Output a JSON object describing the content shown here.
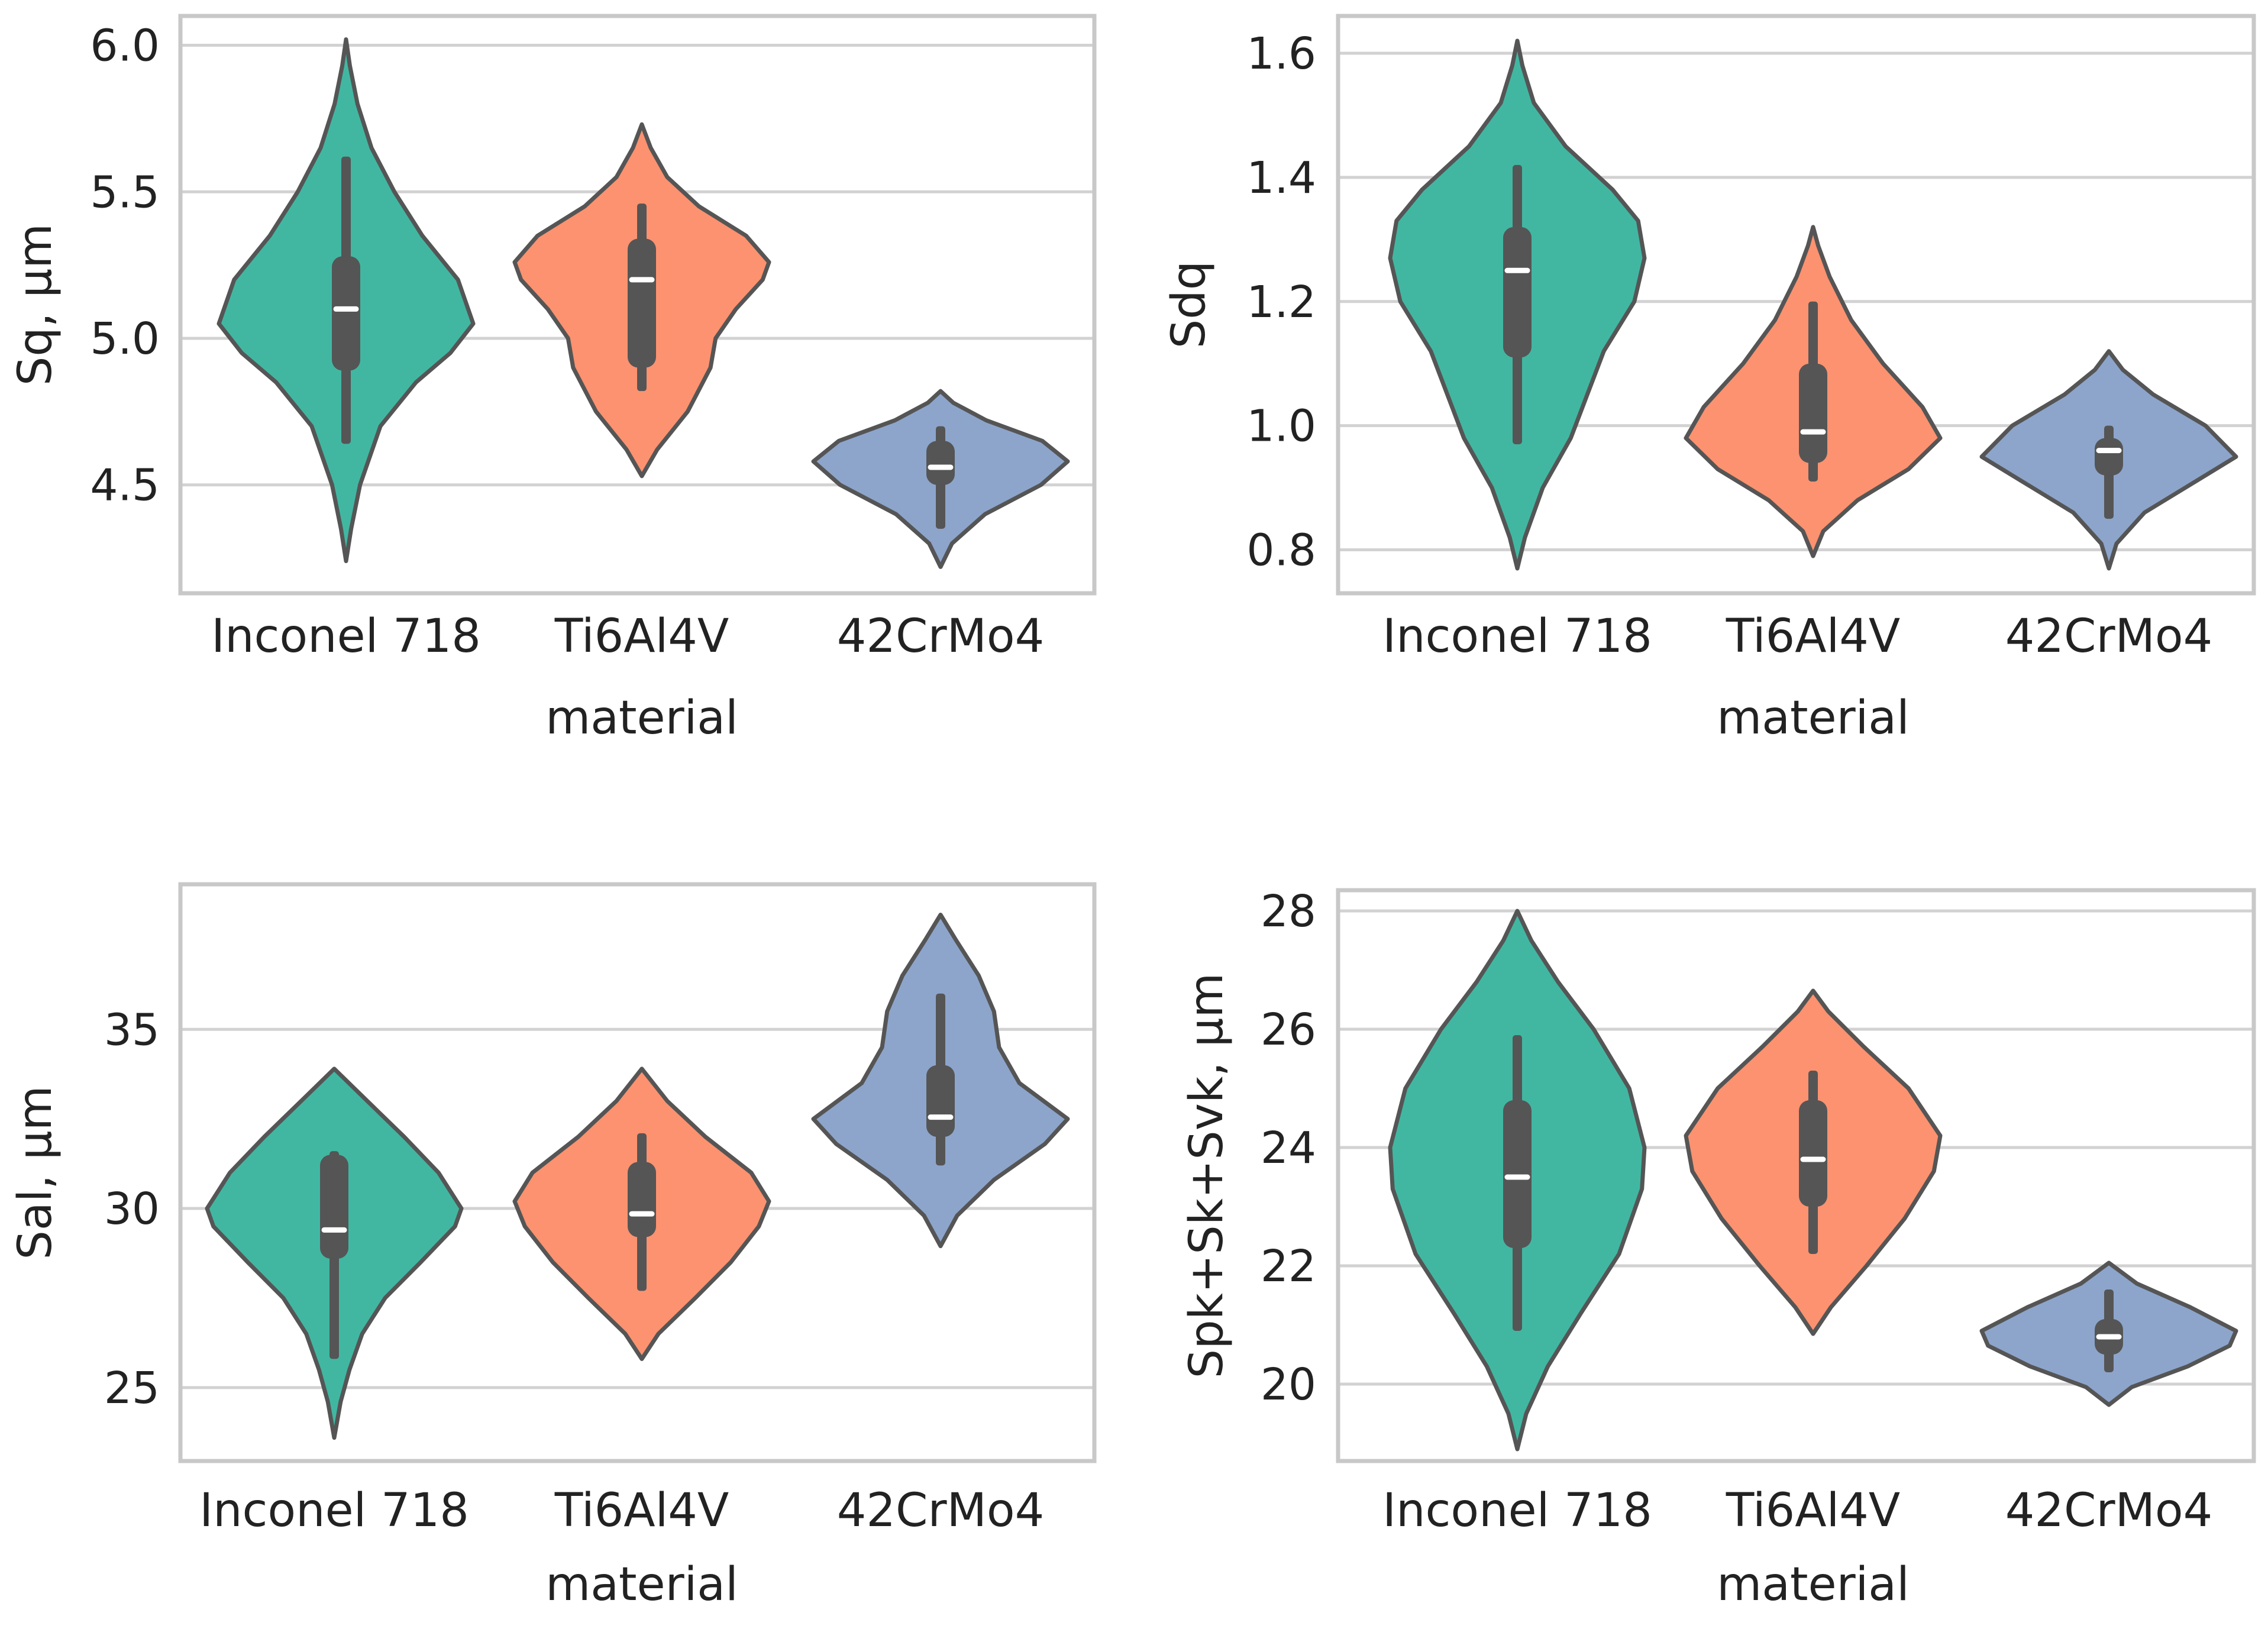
{
  "figure": {
    "colors": {
      "Inconel 718": "#41b7a2",
      "Ti6Al4V": "#fc9270",
      "42CrMo4": "#8da5cb",
      "grid": "#d2d2d2",
      "frame": "#c8c8c8",
      "outline": "#555555",
      "box": "#555555",
      "median": "#ffffff"
    }
  },
  "chart_data": [
    {
      "type": "violin",
      "categories": [
        "Inconel 718",
        "Ti6Al4V",
        "42CrMo4"
      ],
      "xlabel": "material",
      "ylabel": "Sq, µm",
      "ylim": [
        4.13,
        6.1
      ],
      "yticks": [
        4.5,
        5.0,
        5.5,
        6.0
      ],
      "ytick_labels": [
        "4.5",
        "5.0",
        "5.5",
        "6.0"
      ],
      "grid": true,
      "violins": [
        {
          "category": "Inconel 718",
          "min": 4.64,
          "q1": 4.89,
          "median": 5.1,
          "q3": 5.28,
          "max": 5.62,
          "density": [
            [
              4.24,
              0.0
            ],
            [
              4.35,
              0.04
            ],
            [
              4.5,
              0.11
            ],
            [
              4.7,
              0.27
            ],
            [
              4.85,
              0.55
            ],
            [
              4.95,
              0.82
            ],
            [
              5.05,
              1.0
            ],
            [
              5.2,
              0.88
            ],
            [
              5.35,
              0.6
            ],
            [
              5.5,
              0.38
            ],
            [
              5.65,
              0.2
            ],
            [
              5.8,
              0.09
            ],
            [
              5.93,
              0.03
            ],
            [
              6.02,
              0.0
            ]
          ]
        },
        {
          "category": "Ti6Al4V",
          "min": 4.82,
          "q1": 4.9,
          "median": 5.2,
          "q3": 5.34,
          "max": 5.46,
          "density": [
            [
              4.53,
              0.0
            ],
            [
              4.62,
              0.12
            ],
            [
              4.75,
              0.36
            ],
            [
              4.9,
              0.54
            ],
            [
              5.0,
              0.58
            ],
            [
              5.1,
              0.74
            ],
            [
              5.2,
              0.95
            ],
            [
              5.26,
              1.0
            ],
            [
              5.35,
              0.82
            ],
            [
              5.45,
              0.45
            ],
            [
              5.55,
              0.2
            ],
            [
              5.65,
              0.07
            ],
            [
              5.73,
              0.0
            ]
          ]
        },
        {
          "category": "42CrMo4",
          "min": 4.35,
          "q1": 4.5,
          "median": 4.56,
          "q3": 4.65,
          "max": 4.7,
          "density": [
            [
              4.22,
              0.0
            ],
            [
              4.3,
              0.09
            ],
            [
              4.4,
              0.35
            ],
            [
              4.5,
              0.79
            ],
            [
              4.58,
              1.0
            ],
            [
              4.65,
              0.8
            ],
            [
              4.72,
              0.36
            ],
            [
              4.78,
              0.1
            ],
            [
              4.82,
              0.0
            ]
          ]
        }
      ]
    },
    {
      "type": "violin",
      "categories": [
        "Inconel 718",
        "Ti6Al4V",
        "42CrMo4"
      ],
      "xlabel": "material",
      "ylabel": "Sdq",
      "ylim": [
        0.73,
        1.66
      ],
      "yticks": [
        0.8,
        1.0,
        1.2,
        1.4,
        1.6
      ],
      "ytick_labels": [
        "0.8",
        "1.0",
        "1.2",
        "1.4",
        "1.6"
      ],
      "grid": true,
      "violins": [
        {
          "category": "Inconel 718",
          "min": 0.97,
          "q1": 1.11,
          "median": 1.25,
          "q3": 1.32,
          "max": 1.42,
          "density": [
            [
              0.77,
              0.0
            ],
            [
              0.82,
              0.06
            ],
            [
              0.9,
              0.2
            ],
            [
              0.98,
              0.42
            ],
            [
              1.05,
              0.55
            ],
            [
              1.12,
              0.68
            ],
            [
              1.2,
              0.92
            ],
            [
              1.27,
              1.0
            ],
            [
              1.33,
              0.95
            ],
            [
              1.38,
              0.75
            ],
            [
              1.45,
              0.38
            ],
            [
              1.52,
              0.13
            ],
            [
              1.58,
              0.04
            ],
            [
              1.62,
              0.0
            ]
          ]
        },
        {
          "category": "Ti6Al4V",
          "min": 0.91,
          "q1": 0.94,
          "median": 0.99,
          "q3": 1.1,
          "max": 1.2,
          "density": [
            [
              0.79,
              0.0
            ],
            [
              0.83,
              0.08
            ],
            [
              0.88,
              0.35
            ],
            [
              0.93,
              0.75
            ],
            [
              0.98,
              1.0
            ],
            [
              1.03,
              0.86
            ],
            [
              1.1,
              0.55
            ],
            [
              1.17,
              0.3
            ],
            [
              1.24,
              0.13
            ],
            [
              1.29,
              0.04
            ],
            [
              1.32,
              0.0
            ]
          ]
        },
        {
          "category": "42CrMo4",
          "min": 0.85,
          "q1": 0.92,
          "median": 0.96,
          "q3": 0.98,
          "max": 1.0,
          "density": [
            [
              0.77,
              0.0
            ],
            [
              0.81,
              0.06
            ],
            [
              0.86,
              0.28
            ],
            [
              0.91,
              0.68
            ],
            [
              0.95,
              1.0
            ],
            [
              1.0,
              0.76
            ],
            [
              1.05,
              0.35
            ],
            [
              1.09,
              0.11
            ],
            [
              1.12,
              0.0
            ]
          ]
        }
      ]
    },
    {
      "type": "violin",
      "categories": [
        "Inconel 718",
        "Ti6Al4V",
        "42CrMo4"
      ],
      "xlabel": "material",
      "ylabel": "Sal, µm",
      "ylim": [
        22.95,
        39.05
      ],
      "yticks": [
        25,
        30,
        35
      ],
      "ytick_labels": [
        "25",
        "30",
        "35"
      ],
      "grid": true,
      "violins": [
        {
          "category": "Inconel 718",
          "min": 25.8,
          "q1": 28.6,
          "median": 29.4,
          "q3": 31.5,
          "max": 31.6,
          "density": [
            [
              23.6,
              0.0
            ],
            [
              24.6,
              0.05
            ],
            [
              25.5,
              0.12
            ],
            [
              26.5,
              0.22
            ],
            [
              27.5,
              0.4
            ],
            [
              28.5,
              0.68
            ],
            [
              29.5,
              0.95
            ],
            [
              30.0,
              1.0
            ],
            [
              31.0,
              0.82
            ],
            [
              32.0,
              0.55
            ],
            [
              33.0,
              0.26
            ],
            [
              33.9,
              0.0
            ]
          ]
        },
        {
          "category": "Ti6Al4V",
          "min": 27.7,
          "q1": 29.2,
          "median": 29.85,
          "q3": 31.3,
          "max": 32.1,
          "density": [
            [
              25.8,
              0.0
            ],
            [
              26.5,
              0.13
            ],
            [
              27.5,
              0.42
            ],
            [
              28.5,
              0.7
            ],
            [
              29.5,
              0.92
            ],
            [
              30.2,
              1.0
            ],
            [
              31.0,
              0.86
            ],
            [
              32.0,
              0.5
            ],
            [
              33.0,
              0.2
            ],
            [
              33.9,
              0.0
            ]
          ]
        },
        {
          "category": "42CrMo4",
          "min": 31.2,
          "q1": 32.0,
          "median": 32.55,
          "q3": 34.0,
          "max": 36.0,
          "density": [
            [
              28.95,
              0.0
            ],
            [
              29.8,
              0.13
            ],
            [
              30.8,
              0.42
            ],
            [
              31.8,
              0.82
            ],
            [
              32.5,
              1.0
            ],
            [
              33.5,
              0.62
            ],
            [
              34.5,
              0.46
            ],
            [
              35.5,
              0.42
            ],
            [
              36.5,
              0.3
            ],
            [
              37.5,
              0.12
            ],
            [
              38.2,
              0.0
            ]
          ]
        }
      ]
    },
    {
      "type": "violin",
      "categories": [
        "Inconel 718",
        "Ti6Al4V",
        "42CrMo4"
      ],
      "xlabel": "material",
      "ylabel": "Spk+Sk+Svk, µm",
      "ylim": [
        18.7,
        28.35
      ],
      "yticks": [
        20,
        22,
        24,
        26,
        28
      ],
      "ytick_labels": [
        "20",
        "22",
        "24",
        "26",
        "28"
      ],
      "grid": true,
      "violins": [
        {
          "category": "Inconel 718",
          "min": 20.9,
          "q1": 22.3,
          "median": 23.5,
          "q3": 24.8,
          "max": 25.9,
          "density": [
            [
              18.9,
              0.0
            ],
            [
              19.5,
              0.07
            ],
            [
              20.3,
              0.24
            ],
            [
              21.2,
              0.5
            ],
            [
              22.2,
              0.8
            ],
            [
              23.3,
              0.98
            ],
            [
              24.0,
              1.0
            ],
            [
              25.0,
              0.88
            ],
            [
              26.0,
              0.6
            ],
            [
              26.8,
              0.32
            ],
            [
              27.5,
              0.11
            ],
            [
              28.0,
              0.0
            ]
          ]
        },
        {
          "category": "Ti6Al4V",
          "min": 22.2,
          "q1": 23.0,
          "median": 23.8,
          "q3": 24.8,
          "max": 25.3,
          "density": [
            [
              20.85,
              0.0
            ],
            [
              21.3,
              0.14
            ],
            [
              22.0,
              0.42
            ],
            [
              22.8,
              0.72
            ],
            [
              23.6,
              0.95
            ],
            [
              24.2,
              1.0
            ],
            [
              25.0,
              0.75
            ],
            [
              25.7,
              0.4
            ],
            [
              26.3,
              0.12
            ],
            [
              26.65,
              0.0
            ]
          ]
        },
        {
          "category": "42CrMo4",
          "min": 20.2,
          "q1": 20.5,
          "median": 20.8,
          "q3": 21.1,
          "max": 21.6,
          "density": [
            [
              19.65,
              0.0
            ],
            [
              19.95,
              0.18
            ],
            [
              20.3,
              0.62
            ],
            [
              20.65,
              0.95
            ],
            [
              20.9,
              1.0
            ],
            [
              21.3,
              0.64
            ],
            [
              21.7,
              0.22
            ],
            [
              22.05,
              0.0
            ]
          ]
        }
      ]
    }
  ]
}
